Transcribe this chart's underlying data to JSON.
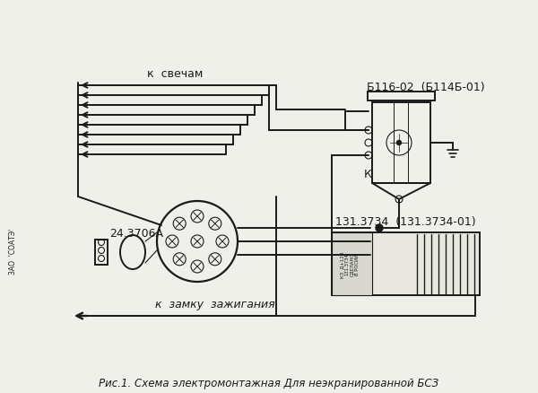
{
  "bg_color": "#f0f0eb",
  "title": "Рис.1. Схема электромонтажная Для неэкранированной БСЗ",
  "title_fontsize": 8.5,
  "label_k_svecham": "к  свечам",
  "label_k_zamku": "к  замку  зажигания",
  "label_24_3706A": "24.3706А",
  "label_b116": "Б116-02  (Б114Б-01)",
  "label_131": "131.3734  (131.3734-01)",
  "label_k": "К",
  "label_side": "ЗАО  'СОАТЭ'",
  "line_color": "#1a1a1a",
  "line_width": 1.4
}
